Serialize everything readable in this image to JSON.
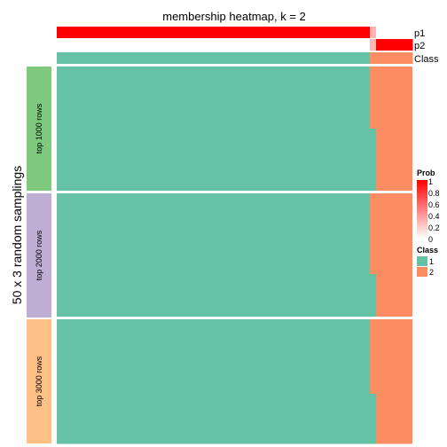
{
  "chart_data": {
    "type": "heatmap",
    "title": "membership heatmap, k = 2",
    "ylabel": "50 x 3 random samplings",
    "annotation_rows": [
      "p1",
      "p2",
      "Class"
    ],
    "samples": {
      "count": 10,
      "p1": [
        1,
        1,
        1,
        1,
        1,
        1,
        1,
        1,
        0.3,
        0
      ],
      "p2": [
        0,
        0,
        0,
        0,
        0,
        0,
        0,
        0,
        0.3,
        1
      ],
      "class": [
        1,
        1,
        1,
        1,
        1,
        1,
        1,
        1,
        2,
        2
      ]
    },
    "panels": [
      {
        "label": "top 1000 rows",
        "color": "#7FC97F",
        "rows": 20,
        "sample1_class": [
          1,
          1,
          1,
          1,
          1,
          1,
          1,
          1,
          1,
          1,
          2,
          2,
          2,
          2,
          2,
          2,
          2,
          2,
          2,
          2
        ]
      },
      {
        "label": "top 2000 rows",
        "color": "#BEAED4",
        "rows": 20,
        "sample1_class": [
          1,
          1,
          1,
          1,
          1,
          1,
          1,
          1,
          1,
          1,
          1,
          1,
          1,
          2,
          2,
          2,
          2,
          2,
          2,
          2
        ]
      },
      {
        "label": "top 3000 rows",
        "color": "#FDC086",
        "rows": 20,
        "sample1_class": [
          1,
          1,
          1,
          1,
          1,
          1,
          1,
          1,
          1,
          1,
          1,
          1,
          2,
          2,
          2,
          2,
          2,
          2,
          2,
          2
        ]
      }
    ],
    "legend_prob": {
      "title": "Prob",
      "ticks": [
        "1",
        "0.8",
        "0.6",
        "0.4",
        "0.2",
        "0"
      ]
    },
    "legend_class": {
      "title": "Class",
      "items": [
        {
          "label": "1",
          "color": "#66C2A5"
        },
        {
          "label": "2",
          "color": "#FC8D62"
        }
      ]
    }
  }
}
